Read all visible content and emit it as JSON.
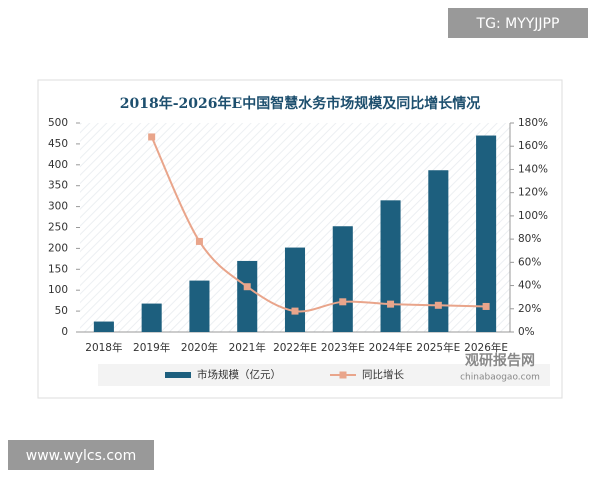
{
  "watermark_top": "TG: MYYJJPP",
  "watermark_bottom": "www.wylcs.com",
  "source_logo": "观研报告网",
  "source_url": "chinabaogao.com",
  "chart_data": {
    "type": "bar",
    "title": "2018年-2026年E中国智慧水务市场规模及同比增长情况",
    "categories": [
      "2018年",
      "2019年",
      "2020年",
      "2021年",
      "2022年E",
      "2023年E",
      "2024年E",
      "2025年E",
      "2026年E"
    ],
    "series": [
      {
        "name": "市场规模（亿元）",
        "color": "#1d5f7e",
        "values": [
          25,
          68,
          123,
          170,
          202,
          253,
          315,
          387,
          470
        ]
      },
      {
        "name": "同比增长",
        "color": "#e9a58b",
        "axis": "y2",
        "values": [
          null,
          168,
          78,
          39,
          18,
          26,
          24,
          23,
          22
        ]
      }
    ],
    "ylim": [
      0,
      500
    ],
    "yticks": [
      0,
      50,
      100,
      150,
      200,
      250,
      300,
      350,
      400,
      450,
      500
    ],
    "y2lim": [
      0,
      180
    ],
    "y2ticks": [
      {
        "value": 0,
        "label": "0%"
      },
      {
        "value": 20,
        "label": "20%"
      },
      {
        "value": 40,
        "label": "40%"
      },
      {
        "value": 60,
        "label": "60%"
      },
      {
        "value": 80,
        "label": "80%"
      },
      {
        "value": 100,
        "label": "100%"
      },
      {
        "value": 120,
        "label": "120%"
      },
      {
        "value": 140,
        "label": "140%"
      },
      {
        "value": 160,
        "label": "160%"
      },
      {
        "value": 180,
        "label": "180%"
      }
    ]
  }
}
